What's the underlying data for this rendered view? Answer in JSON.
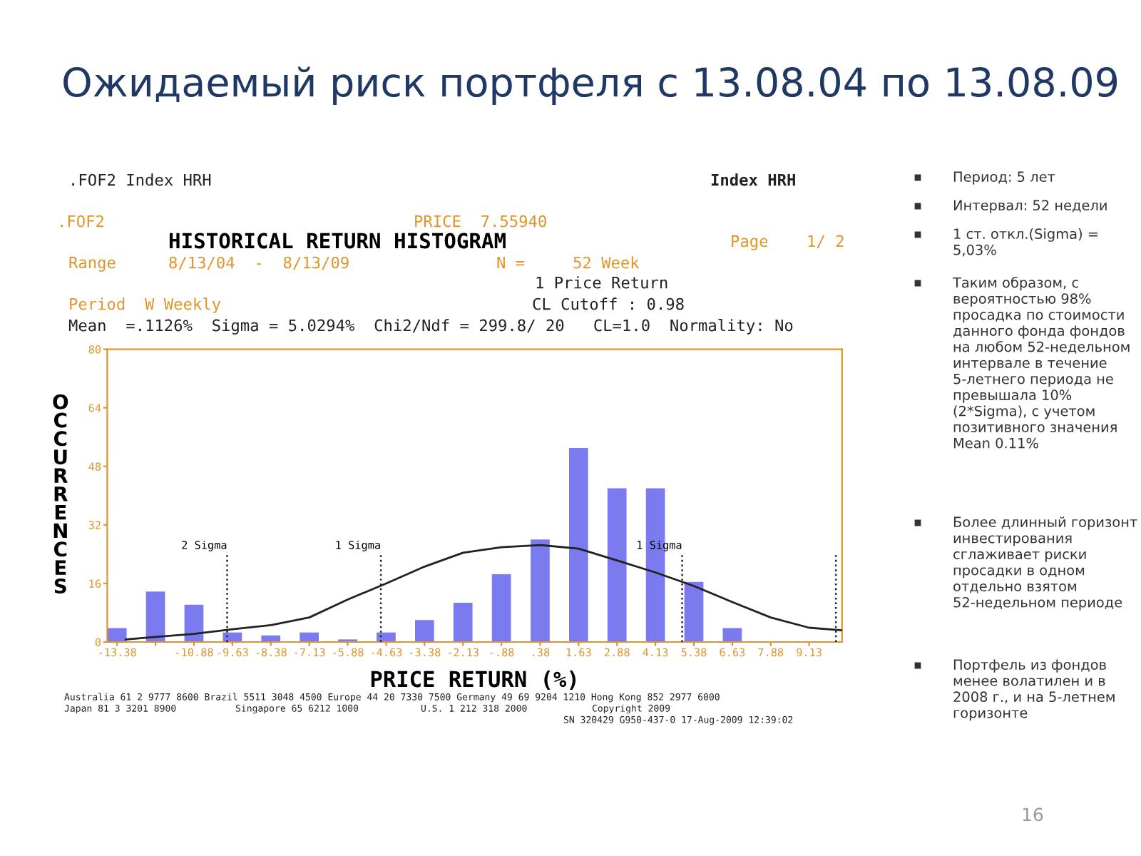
{
  "chart_data": {
    "type": "bar",
    "title": "Ожидаемый риск портфеля с 13.08.04 по 13.08.09",
    "subtitle": "HISTORICAL RETURN HISTOGRAM",
    "xlabel": "PRICE RETURN (%)",
    "ylabel": "OCCURRENCES",
    "series": [
      {
        "color": "#7b7bef",
        "x": [
          -13.38,
          -12.13,
          -10.88,
          -9.63,
          -8.38,
          -7.13,
          -5.88,
          -4.63,
          -3.38,
          -2.13,
          -0.88,
          0.38,
          1.63,
          2.88,
          4.13,
          5.38,
          6.63,
          7.88,
          9.13
        ],
        "values": [
          3.8,
          13.8,
          10.2,
          2.6,
          1.8,
          2.6,
          0.7,
          2.6,
          6,
          10.7,
          18.5,
          28,
          53,
          42,
          42,
          16.4,
          3.8,
          0,
          0
        ]
      },
      {
        "type": "line",
        "color": "#222222",
        "marker": "none",
        "line_style": "solid",
        "x": [
          -13.1,
          -12.13,
          -10.88,
          -9.63,
          -8.38,
          -7.13,
          -5.88,
          -4.63,
          -3.38,
          -2.13,
          -0.88,
          0.38,
          1.63,
          2.88,
          4.13,
          5.38,
          6.63,
          7.88,
          9.13,
          10.18
        ],
        "values": [
          0.7,
          1.4,
          2.2,
          3.5,
          4.6,
          6.7,
          11.6,
          16,
          20.6,
          24.4,
          25.9,
          26.5,
          25.5,
          22.3,
          19,
          15.3,
          10.9,
          6.7,
          3.9,
          3.2
        ]
      }
    ],
    "xlim": [
      -13.7,
      10.2
    ],
    "xticks": [
      -13.38,
      {
        "value": -12.13,
        "label": null
      },
      -10.88,
      -9.63,
      -8.38,
      -7.13,
      -5.88,
      -4.63,
      -3.38,
      -2.13,
      {
        "value": -0.88,
        "label": "-.88"
      },
      {
        "value": 0.38,
        "label": ".38"
      },
      1.63,
      2.88,
      4.13,
      5.38,
      6.63,
      7.88,
      9.13
    ],
    "ylim": [
      0,
      80
    ],
    "yticks": [
      0,
      16,
      32,
      48,
      64,
      80
    ],
    "grid": false,
    "ref_lines": [
      {
        "axis": "x",
        "value": -9.8,
        "label": "2 Sigma",
        "color": "#222222",
        "line_style": "dotted"
      },
      {
        "axis": "x",
        "value": -4.8,
        "label": "1 Sigma",
        "color": "#222222",
        "line_style": "dotted"
      },
      {
        "axis": "x",
        "value": 5.0,
        "label": "1 Sigma",
        "color": "#222222",
        "line_style": "dotted"
      },
      {
        "axis": "x",
        "value": 10.0,
        "label": null,
        "color": "#222222",
        "line_style": "dotted"
      }
    ],
    "annotations": [
      ".FOF2 Index HRH",
      "Index HRH",
      ".FOF2",
      "PRICE  7.55940",
      "Page    1/ 2",
      "Range",
      "8/13/04  -  8/13/09",
      "N =     52 Week",
      "1 Price Return",
      "Period  W Weekly",
      "CL Cutoff : 0.98",
      "Mean  =.1126%  Sigma = 5.0294%  Chi2/Ndf = 299.8/ 20   CL=1.0  Normality: No",
      "Australia 61 2 9777 8600 Brazil 5511 3048 4500 Europe 44 20 7330 7500 Germany 49 69 9204 1210 Hong Kong 852 2977 6000",
      "Japan 81 3 3201 8900",
      "Singapore 65 6212 1000",
      "U.S. 1 212 318 2000",
      "Copyright 2009",
      "SN 320429 G950-437-0 17-Aug-2009 12:39:02",
      "Период: 5 лет",
      "Интервал: 52 недели",
      "1 ст. откл.(Sigma) = 5,03%",
      "Таким образом, с вероятностью 98% просадка по стоимости данного фонда фондов на любом 52-недельном интервале в течение 5-летнего периода не превышала 10% (2*Sigma), с учетом позитивного значения Mean 0.11%",
      "Более длинный горизонт инвестирования сглаживает риски просадки в одном отдельно взятом 52-недельном периоде",
      "Портфель из фондов менее волатилен и в 2008 г., и на 5-летнем горизонте",
      "16"
    ]
  }
}
